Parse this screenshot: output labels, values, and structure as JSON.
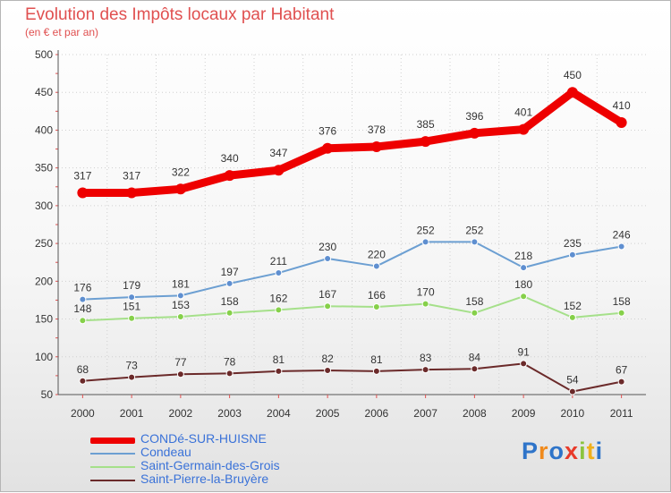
{
  "title": "Evolution des Impôts locaux par Habitant",
  "subtitle": "(en € et par an)",
  "logo_text": "Proxiti",
  "chart_data": {
    "type": "line",
    "x": [
      "2000",
      "2001",
      "2002",
      "2003",
      "2004",
      "2005",
      "2006",
      "2007",
      "2008",
      "2009",
      "2010",
      "2011"
    ],
    "ylim": [
      50,
      500
    ],
    "yticks": [
      50,
      100,
      150,
      200,
      250,
      300,
      350,
      400,
      450,
      500
    ],
    "grid": true,
    "legend_position": "bottom-left",
    "series": [
      {
        "name": "CONDé-SUR-HUISNE",
        "color": "#ee0000",
        "marker_color": "#ee0000",
        "values": [
          317,
          317,
          322,
          340,
          347,
          376,
          378,
          385,
          396,
          401,
          450,
          410
        ]
      },
      {
        "name": "Condeau",
        "color": "#6c9fd2",
        "marker_color": "#5f8fd0",
        "values": [
          176,
          179,
          181,
          197,
          211,
          230,
          220,
          252,
          252,
          218,
          235,
          246
        ]
      },
      {
        "name": "Saint-Germain-des-Grois",
        "color": "#a5e08a",
        "marker_color": "#86d04a",
        "values": [
          148,
          151,
          153,
          158,
          162,
          167,
          166,
          170,
          158,
          180,
          152,
          158
        ]
      },
      {
        "name": "Saint-Pierre-la-Bruyère",
        "color": "#6b2a2a",
        "marker_color": "#6b2a2a",
        "values": [
          68,
          73,
          77,
          78,
          81,
          82,
          81,
          83,
          84,
          91,
          54,
          67
        ]
      }
    ]
  }
}
